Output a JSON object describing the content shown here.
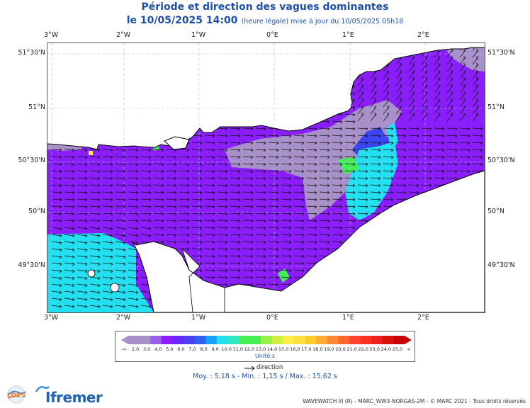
{
  "title": "Période et direction des vagues dominantes",
  "subtitle": {
    "date": "le 10/05/2025 14:00",
    "note": "(heure légale) mise à jour du 10/05/2025 05h18"
  },
  "axes": {
    "lon_ticks": [
      "3°W",
      "2°W",
      "1°W",
      "0°E",
      "1°E",
      "2°E"
    ],
    "lat_ticks": [
      "51°30'N",
      "51°N",
      "50°30'N",
      "50°N",
      "49°30'N"
    ]
  },
  "colors": {
    "land": "#ffffff",
    "purple": "#8a1eff",
    "grey_purple": "#a890c8",
    "blue": "#3a46ee",
    "cyan": "#22e0ef",
    "green": "#44ee55",
    "yellow": "#ffee44",
    "arrow": "#111111",
    "title": "#1f4fa8"
  },
  "legend": {
    "labels": [
      "2,0",
      "3,0",
      "4,0",
      "5,0",
      "6,0",
      "7,0",
      "8,0",
      "9,0",
      "10,0",
      "11,0",
      "12,0",
      "13,0",
      "14,0",
      "15,0",
      "16,0",
      "17,0",
      "18,0",
      "19,0",
      "20,0",
      "21,0",
      "22,0",
      "23,0",
      "24,0",
      "25,0"
    ],
    "left_end": "-∞",
    "right_end": "∞",
    "colors": [
      "#a890c8",
      "#a890c8",
      "#9a60e8",
      "#8a1eff",
      "#6a28f8",
      "#4a40f0",
      "#3060f0",
      "#1aa0f8",
      "#22e0ef",
      "#30e8c0",
      "#44ee55",
      "#44ee55",
      "#99f044",
      "#ccf040",
      "#ffee44",
      "#ffe040",
      "#ffcc30",
      "#ffaa30",
      "#ff8830",
      "#ff6630",
      "#ff4430",
      "#ff3020",
      "#ee2020",
      "#dd1010",
      "#cc0000"
    ],
    "unit": "Unité:s",
    "direction_label": "direction"
  },
  "stats": "Moy. : 5,18 s   -   Min. : 1,15 s / Max. : 15,62 s",
  "credits": "WAVEWATCH III (R) - MARC_WW3-NORGAS-2M - © MARC 2021 - Tous droits réservés",
  "logos": {
    "lops": "LOPS",
    "ifremer": "Ifremer"
  }
}
